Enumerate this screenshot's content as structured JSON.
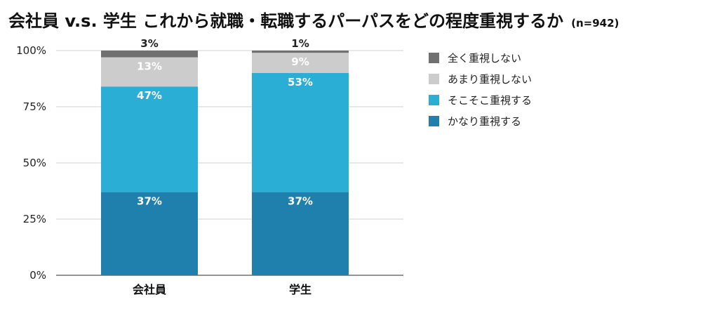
{
  "chart_data": {
    "type": "bar",
    "stacked": true,
    "title": "会社員 v.s. 学生 これから就職・転職するパーパスをどの程度重視するか",
    "subtitle": "(n=942)",
    "categories": [
      "会社員",
      "学生"
    ],
    "ylim": [
      0,
      100
    ],
    "yticks": [
      "0%",
      "25%",
      "50%",
      "75%",
      "100%"
    ],
    "grid": true,
    "legend_position": "right",
    "series": [
      {
        "name": "かなり重視する",
        "color": "#1f7fad",
        "values": [
          37,
          37
        ],
        "labels": [
          "37%",
          "37%"
        ],
        "label_color": "#ffffff"
      },
      {
        "name": "そこそこ重視する",
        "color": "#2aaed5",
        "values": [
          47,
          53
        ],
        "labels": [
          "47%",
          "53%"
        ],
        "label_color": "#ffffff"
      },
      {
        "name": "あまり重視しない",
        "color": "#cccccc",
        "values": [
          13,
          9
        ],
        "labels": [
          "13%",
          "9%"
        ],
        "label_color": "#ffffff"
      },
      {
        "name": "全く重視しない",
        "color": "#707070",
        "values": [
          3,
          1
        ],
        "labels": [
          "3%",
          "1%"
        ],
        "label_color": "#222222"
      }
    ]
  }
}
